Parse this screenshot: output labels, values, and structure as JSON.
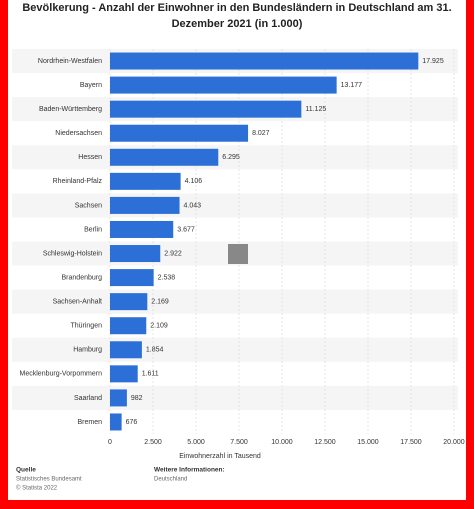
{
  "chart_data": {
    "type": "bar",
    "orientation": "horizontal",
    "title": "Bevölkerung - Anzahl der Einwohner in den Bundesländern in Deutschland am 31. Dezember 2021 (in 1.000)",
    "categories": [
      "Nordrhein-Westfalen",
      "Bayern",
      "Baden-Württemberg",
      "Niedersachsen",
      "Hessen",
      "Rheinland-Pfalz",
      "Sachsen",
      "Berlin",
      "Schleswig-Holstein",
      "Brandenburg",
      "Sachsen-Anhalt",
      "Thüringen",
      "Hamburg",
      "Mecklenburg-Vorpommern",
      "Saarland",
      "Bremen"
    ],
    "values": [
      17925,
      13177,
      11125,
      8027,
      6295,
      4106,
      4043,
      3677,
      2922,
      2538,
      2169,
      2109,
      1854,
      1611,
      982,
      676
    ],
    "value_labels": [
      "17.925",
      "13.177",
      "11.125",
      "8.027",
      "6.295",
      "4.106",
      "4.043",
      "3.677",
      "2.922",
      "2.538",
      "2.169",
      "2.109",
      "1.854",
      "1.611",
      "982",
      "676"
    ],
    "color": "#2c6fd6",
    "xlim": [
      0,
      20000
    ],
    "xticks": [
      0,
      {
        "value": 2500,
        "label": "2.500"
      },
      {
        "value": 5000,
        "label": "5.000"
      },
      {
        "value": 7500,
        "label": "7.500"
      },
      {
        "value": 10000,
        "label": "10.000"
      },
      {
        "value": 12500,
        "label": "12.500"
      },
      {
        "value": 15000,
        "label": "15.000"
      },
      {
        "value": 17500,
        "label": "17.500"
      },
      {
        "value": 20000,
        "label": "20.000"
      }
    ],
    "xlabel": "Einwohnerzahl in Tausend",
    "grid": true,
    "source": {
      "heading": "Quelle",
      "lines": [
        "Statistisches Bundesamt",
        "© Statista 2022"
      ]
    },
    "info": {
      "heading": "Weitere Informationen:",
      "lines": [
        "Deutschland"
      ]
    }
  }
}
